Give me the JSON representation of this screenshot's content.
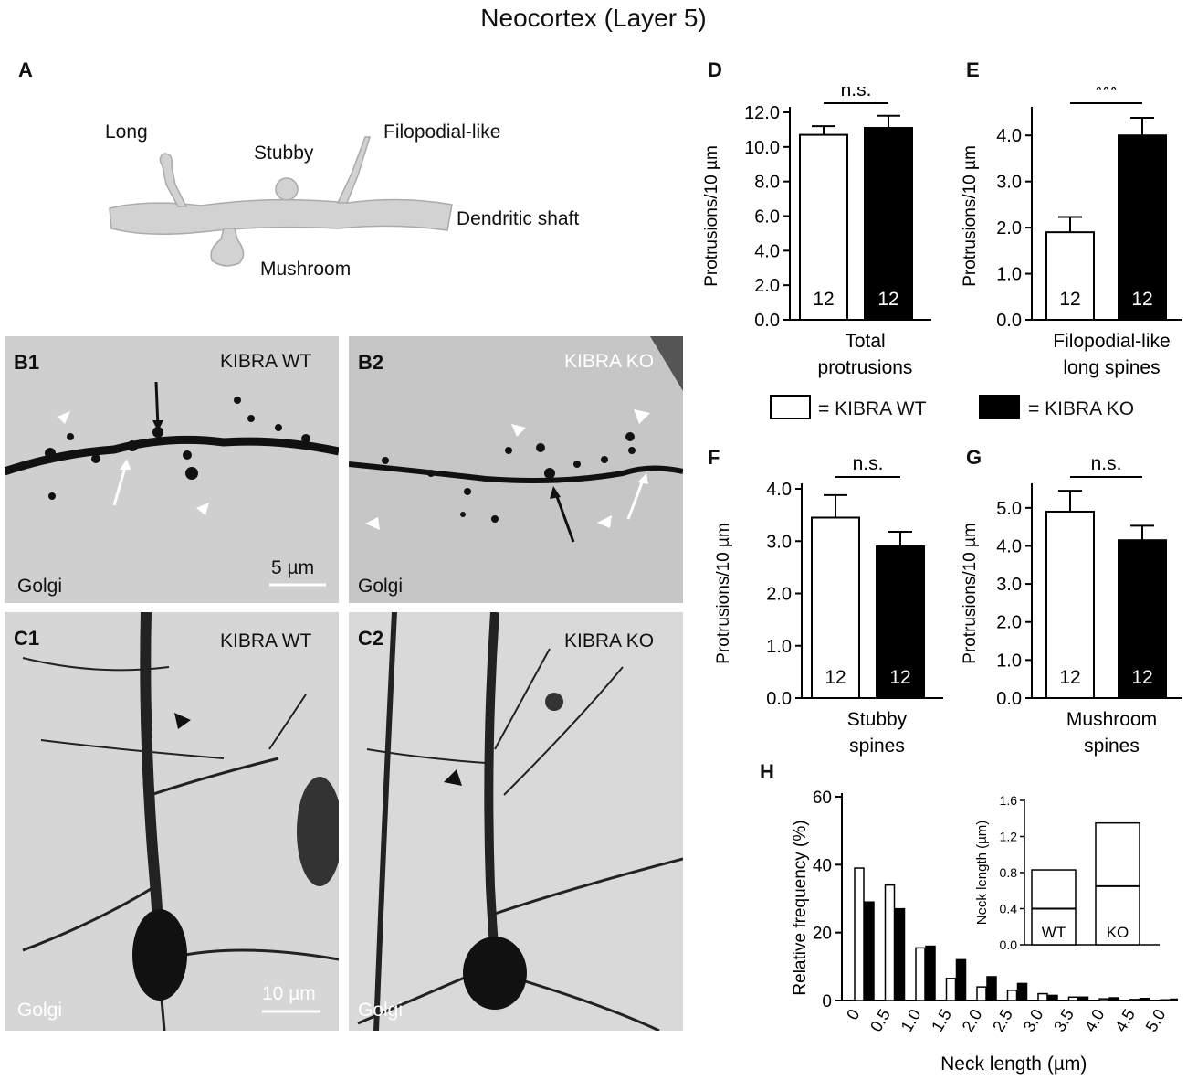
{
  "figure_title": "Neocortex (Layer 5)",
  "panel_labels": {
    "A": "A",
    "B1": "B1",
    "B2": "B2",
    "C1": "C1",
    "C2": "C2",
    "D": "D",
    "E": "E",
    "F": "F",
    "G": "G",
    "H": "H"
  },
  "schematic": {
    "long": "Long",
    "stubby": "Stubby",
    "filopodial": "Filopodial-like",
    "shaft": "Dendritic shaft",
    "mushroom": "Mushroom"
  },
  "photos": {
    "b1_title": "KIBRA WT",
    "b2_title": "KIBRA KO",
    "c1_title": "KIBRA WT",
    "c2_title": "KIBRA KO",
    "stain": "Golgi",
    "scale_b": "5 µm",
    "scale_c": "10 µm"
  },
  "legend": {
    "wt": "= KIBRA WT",
    "ko": "= KIBRA KO"
  },
  "colors": {
    "wt_fill": "#ffffff",
    "ko_fill": "#000000",
    "photo_bg": "#cfcfcf"
  },
  "chart_data": [
    {
      "id": "D",
      "type": "bar",
      "ylabel": "Protrusions/10 µm",
      "xlabel": [
        "Total",
        "protrusions"
      ],
      "ylim": [
        0,
        12
      ],
      "ticks": [
        "0.0",
        "2.0",
        "4.0",
        "6.0",
        "8.0",
        "10.0",
        "12.0"
      ],
      "categories": [
        "KIBRA WT",
        "KIBRA KO"
      ],
      "values": [
        10.7,
        11.1
      ],
      "errors": [
        0.5,
        0.7
      ],
      "n": [
        "12",
        "12"
      ],
      "sig": "n.s."
    },
    {
      "id": "E",
      "type": "bar",
      "ylabel": "Protrusions/10 µm",
      "xlabel": [
        "Filopodial-like",
        "long spines"
      ],
      "ylim": [
        0,
        4.5
      ],
      "ticks": [
        "0.0",
        "1.0",
        "2.0",
        "3.0",
        "4.0"
      ],
      "categories": [
        "KIBRA WT",
        "KIBRA KO"
      ],
      "values": [
        1.9,
        4.0
      ],
      "errors": [
        0.33,
        0.38
      ],
      "n": [
        "12",
        "12"
      ],
      "sig": "***"
    },
    {
      "id": "F",
      "type": "bar",
      "ylabel": "Protrusions/10 µm",
      "xlabel": [
        "Stubby",
        "spines"
      ],
      "ylim": [
        0,
        4.0
      ],
      "ticks": [
        "0.0",
        "1.0",
        "2.0",
        "3.0",
        "4.0"
      ],
      "categories": [
        "KIBRA WT",
        "KIBRA KO"
      ],
      "values": [
        3.45,
        2.9
      ],
      "errors": [
        0.43,
        0.28
      ],
      "n": [
        "12",
        "12"
      ],
      "sig": "n.s."
    },
    {
      "id": "G",
      "type": "bar",
      "ylabel": "Protrusions/10 µm",
      "xlabel": [
        "Mushroom",
        "spines"
      ],
      "ylim": [
        0,
        5.5
      ],
      "ticks": [
        "0.0",
        "1.0",
        "2.0",
        "3.0",
        "4.0",
        "5.0"
      ],
      "categories": [
        "KIBRA WT",
        "KIBRA KO"
      ],
      "values": [
        4.9,
        4.15
      ],
      "errors": [
        0.55,
        0.38
      ],
      "n": [
        "12",
        "12"
      ],
      "sig": "n.s."
    },
    {
      "id": "H",
      "type": "bar",
      "ylabel": "Relative frequency (%)",
      "xlabel": "Neck length (µm)",
      "ylim": [
        0,
        60
      ],
      "yticks": [
        "0",
        "20",
        "40",
        "60"
      ],
      "categories": [
        "0",
        "0.5",
        "1.0",
        "1.5",
        "2.0",
        "2.5",
        "3.0",
        "3.5",
        "4.0",
        "4.5",
        "5.0"
      ],
      "series": [
        {
          "name": "KIBRA WT",
          "values": [
            39,
            34,
            15.5,
            6.5,
            4,
            3,
            2,
            1,
            0.5,
            0.3,
            0.2
          ]
        },
        {
          "name": "KIBRA KO",
          "values": [
            29,
            27,
            16,
            12,
            7,
            5,
            1.5,
            1,
            0.8,
            0.6,
            0.4
          ]
        }
      ]
    },
    {
      "id": "H-inset",
      "type": "bar",
      "ylabel": "Neck length (µm)",
      "ylim": [
        0,
        1.6
      ],
      "ticks": [
        "0.0",
        "0.4",
        "0.8",
        "1.2",
        "1.6"
      ],
      "categories": [
        "WT",
        "KO"
      ],
      "values": [
        0.83,
        1.35
      ],
      "medians": [
        0.4,
        0.65
      ]
    }
  ]
}
